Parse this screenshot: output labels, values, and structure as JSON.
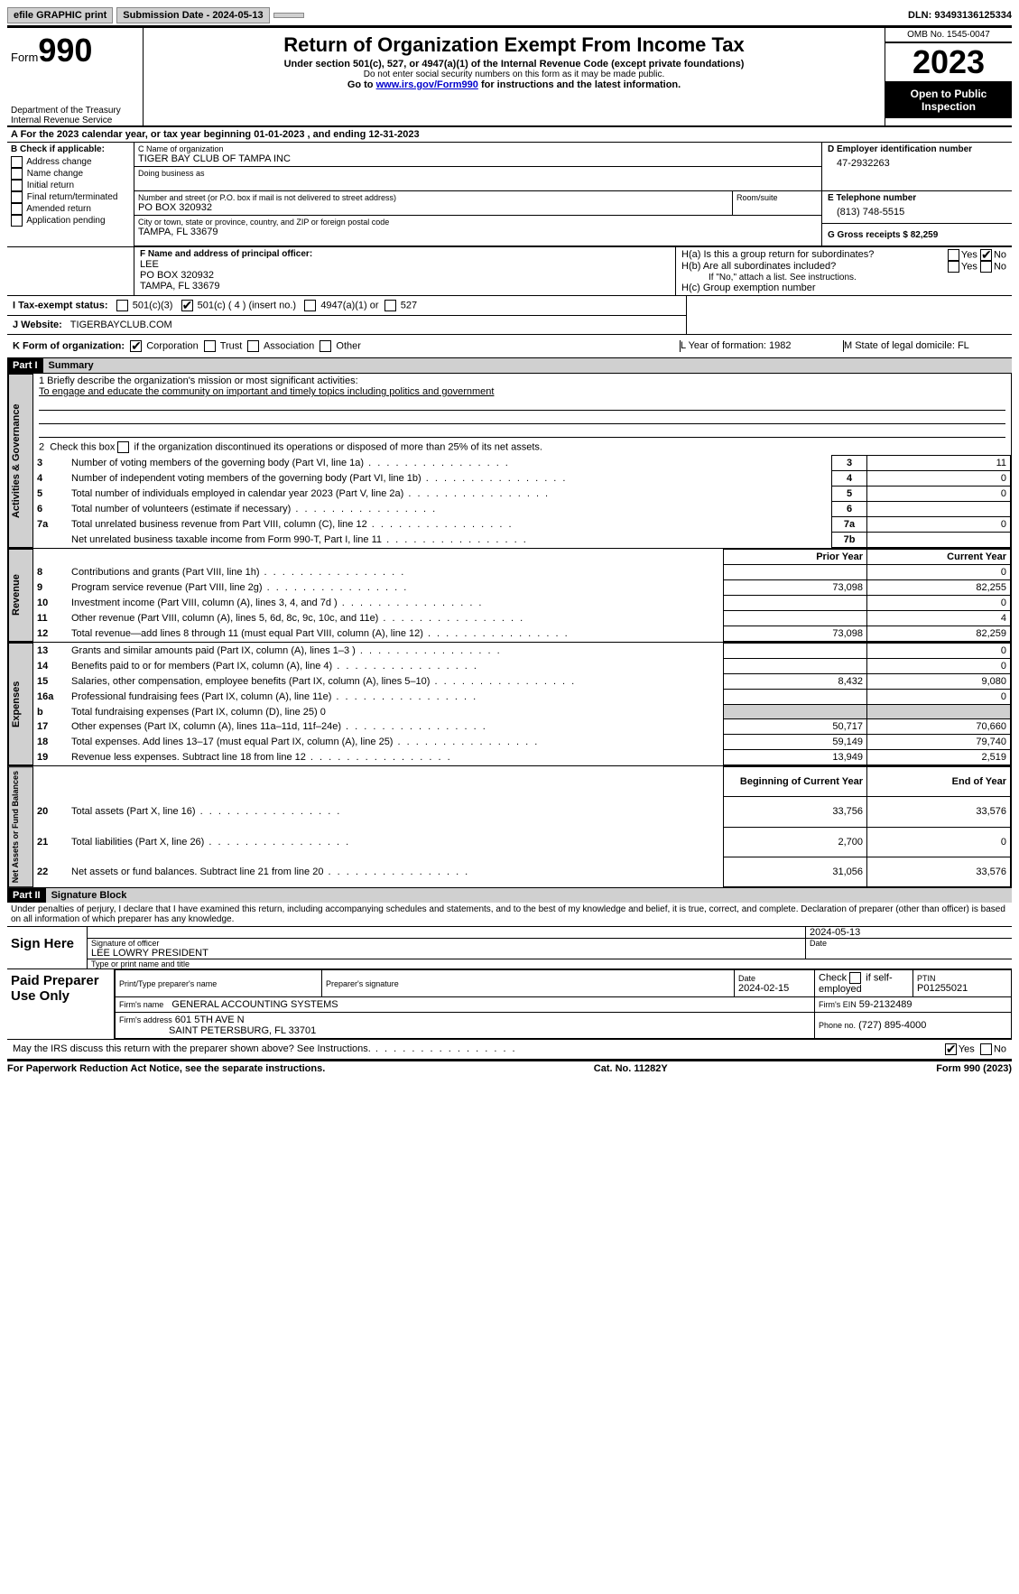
{
  "topbar": {
    "efile": "efile GRAPHIC print",
    "submission_label": "Submission Date - 2024-05-13",
    "dln_label": "DLN: 93493136125334"
  },
  "header": {
    "form_word": "Form",
    "form_num": "990",
    "dept": "Department of the Treasury",
    "irs": "Internal Revenue Service",
    "title": "Return of Organization Exempt From Income Tax",
    "sub1": "Under section 501(c), 527, or 4947(a)(1) of the Internal Revenue Code (except private foundations)",
    "sub2": "Do not enter social security numbers on this form as it may be made public.",
    "sub3_pre": "Go to ",
    "sub3_link": "www.irs.gov/Form990",
    "sub3_post": " for instructions and the latest information.",
    "omb": "OMB No. 1545-0047",
    "year": "2023",
    "inspect": "Open to Public Inspection"
  },
  "sectionA": {
    "line": "A For the 2023 calendar year, or tax year beginning 01-01-2023    , and ending 12-31-2023"
  },
  "sectionB": {
    "title": "B Check if applicable:",
    "opts": [
      "Address change",
      "Name change",
      "Initial return",
      "Final return/terminated",
      "Amended return",
      "Application pending"
    ]
  },
  "sectionC": {
    "name_label": "C Name of organization",
    "name": "TIGER BAY CLUB OF TAMPA INC",
    "dba_label": "Doing business as",
    "addr_label": "Number and street (or P.O. box if mail is not delivered to street address)",
    "room_label": "Room/suite",
    "addr": "PO BOX 320932",
    "city_label": "City or town, state or province, country, and ZIP or foreign postal code",
    "city": "TAMPA, FL  33679"
  },
  "sectionD": {
    "label": "D Employer identification number",
    "val": "47-2932263"
  },
  "sectionE": {
    "label": "E Telephone number",
    "val": "(813) 748-5515"
  },
  "sectionG": {
    "label": "G Gross receipts $ 82,259"
  },
  "sectionF": {
    "label": "F  Name and address of principal officer:",
    "l1": "LEE",
    "l2": "PO BOX 320932",
    "l3": "TAMPA, FL  33679"
  },
  "sectionH": {
    "a": "H(a)  Is this a group return for subordinates?",
    "b": "H(b)  Are all subordinates included?",
    "b_note": "If \"No,\" attach a list. See instructions.",
    "c": "H(c)  Group exemption number",
    "yes": "Yes",
    "no": "No"
  },
  "sectionI": {
    "label": "I   Tax-exempt status:",
    "o1": "501(c)(3)",
    "o2": "501(c) ( 4 ) (insert no.)",
    "o3": "4947(a)(1) or",
    "o4": "527"
  },
  "sectionJ": {
    "label": "J   Website:",
    "val": "TIGERBAYCLUB.COM"
  },
  "sectionK": {
    "label": "K Form of organization:",
    "o1": "Corporation",
    "o2": "Trust",
    "o3": "Association",
    "o4": "Other"
  },
  "sectionL": {
    "label": "L Year of formation: 1982"
  },
  "sectionM": {
    "label": "M State of legal domicile: FL"
  },
  "partI": {
    "num": "Part I",
    "title": "Summary",
    "l1_label": "1   Briefly describe the organization's mission or most significant activities:",
    "l1_val": "To engage and educate the community on important and timely topics including politics and government",
    "l2": "2   Check this box        if the organization discontinued its operations or disposed of more than 25% of its net assets.",
    "gov_label": "Activities & Governance",
    "rev_label": "Revenue",
    "exp_label": "Expenses",
    "net_label": "Net Assets or Fund Balances",
    "rows_gov": [
      {
        "n": "3",
        "t": "Number of voting members of the governing body (Part VI, line 1a)",
        "k": "3",
        "v": "11"
      },
      {
        "n": "4",
        "t": "Number of independent voting members of the governing body (Part VI, line 1b)",
        "k": "4",
        "v": "0"
      },
      {
        "n": "5",
        "t": "Total number of individuals employed in calendar year 2023 (Part V, line 2a)",
        "k": "5",
        "v": "0"
      },
      {
        "n": "6",
        "t": "Total number of volunteers (estimate if necessary)",
        "k": "6",
        "v": ""
      },
      {
        "n": "7a",
        "t": "Total unrelated business revenue from Part VIII, column (C), line 12",
        "k": "7a",
        "v": "0"
      },
      {
        "n": "",
        "t": "Net unrelated business taxable income from Form 990-T, Part I, line 11",
        "k": "7b",
        "v": ""
      }
    ],
    "col_prior": "Prior Year",
    "col_current": "Current Year",
    "rows_rev": [
      {
        "n": "8",
        "t": "Contributions and grants (Part VIII, line 1h)",
        "p": "",
        "c": "0"
      },
      {
        "n": "9",
        "t": "Program service revenue (Part VIII, line 2g)",
        "p": "73,098",
        "c": "82,255"
      },
      {
        "n": "10",
        "t": "Investment income (Part VIII, column (A), lines 3, 4, and 7d )",
        "p": "",
        "c": "0"
      },
      {
        "n": "11",
        "t": "Other revenue (Part VIII, column (A), lines 5, 6d, 8c, 9c, 10c, and 11e)",
        "p": "",
        "c": "4"
      },
      {
        "n": "12",
        "t": "Total revenue—add lines 8 through 11 (must equal Part VIII, column (A), line 12)",
        "p": "73,098",
        "c": "82,259"
      }
    ],
    "rows_exp": [
      {
        "n": "13",
        "t": "Grants and similar amounts paid (Part IX, column (A), lines 1–3 )",
        "p": "",
        "c": "0"
      },
      {
        "n": "14",
        "t": "Benefits paid to or for members (Part IX, column (A), line 4)",
        "p": "",
        "c": "0"
      },
      {
        "n": "15",
        "t": "Salaries, other compensation, employee benefits (Part IX, column (A), lines 5–10)",
        "p": "8,432",
        "c": "9,080"
      },
      {
        "n": "16a",
        "t": "Professional fundraising fees (Part IX, column (A), line 11e)",
        "p": "",
        "c": "0"
      }
    ],
    "row_16b": {
      "n": "b",
      "t": "Total fundraising expenses (Part IX, column (D), line 25) 0"
    },
    "rows_exp2": [
      {
        "n": "17",
        "t": "Other expenses (Part IX, column (A), lines 11a–11d, 11f–24e)",
        "p": "50,717",
        "c": "70,660"
      },
      {
        "n": "18",
        "t": "Total expenses. Add lines 13–17 (must equal Part IX, column (A), line 25)",
        "p": "59,149",
        "c": "79,740"
      },
      {
        "n": "19",
        "t": "Revenue less expenses. Subtract line 18 from line 12",
        "p": "13,949",
        "c": "2,519"
      }
    ],
    "col_begin": "Beginning of Current Year",
    "col_end": "End of Year",
    "rows_net": [
      {
        "n": "20",
        "t": "Total assets (Part X, line 16)",
        "p": "33,756",
        "c": "33,576"
      },
      {
        "n": "21",
        "t": "Total liabilities (Part X, line 26)",
        "p": "2,700",
        "c": "0"
      },
      {
        "n": "22",
        "t": "Net assets or fund balances. Subtract line 21 from line 20",
        "p": "31,056",
        "c": "33,576"
      }
    ]
  },
  "partII": {
    "num": "Part II",
    "title": "Signature Block",
    "decl": "Under penalties of perjury, I declare that I have examined this return, including accompanying schedules and statements, and to the best of my knowledge and belief, it is true, correct, and complete. Declaration of preparer (other than officer) is based on all information of which preparer has any knowledge.",
    "sign_here": "Sign Here",
    "sig_officer": "Signature of officer",
    "officer_name": "LEE LOWRY PRESIDENT",
    "type_name": "Type or print name and title",
    "date_label": "Date",
    "sig_date": "2024-05-13",
    "paid": "Paid Preparer Use Only",
    "prep_name_label": "Print/Type preparer's name",
    "prep_sig_label": "Preparer's signature",
    "prep_date": "2024-02-15",
    "check_self": "Check          if self-employed",
    "ptin_label": "PTIN",
    "ptin": "P01255021",
    "firm_name_label": "Firm's name",
    "firm_name": "GENERAL ACCOUNTING SYSTEMS",
    "firm_ein_label": "Firm's EIN",
    "firm_ein": "59-2132489",
    "firm_addr_label": "Firm's address",
    "firm_addr1": "601 5TH AVE N",
    "firm_addr2": "SAINT PETERSBURG, FL  33701",
    "phone_label": "Phone no.",
    "phone": "(727) 895-4000",
    "discuss": "May the IRS discuss this return with the preparer shown above? See Instructions.",
    "yes": "Yes",
    "no": "No"
  },
  "footer": {
    "l": "For Paperwork Reduction Act Notice, see the separate instructions.",
    "c": "Cat. No. 11282Y",
    "r": "Form 990 (2023)"
  }
}
